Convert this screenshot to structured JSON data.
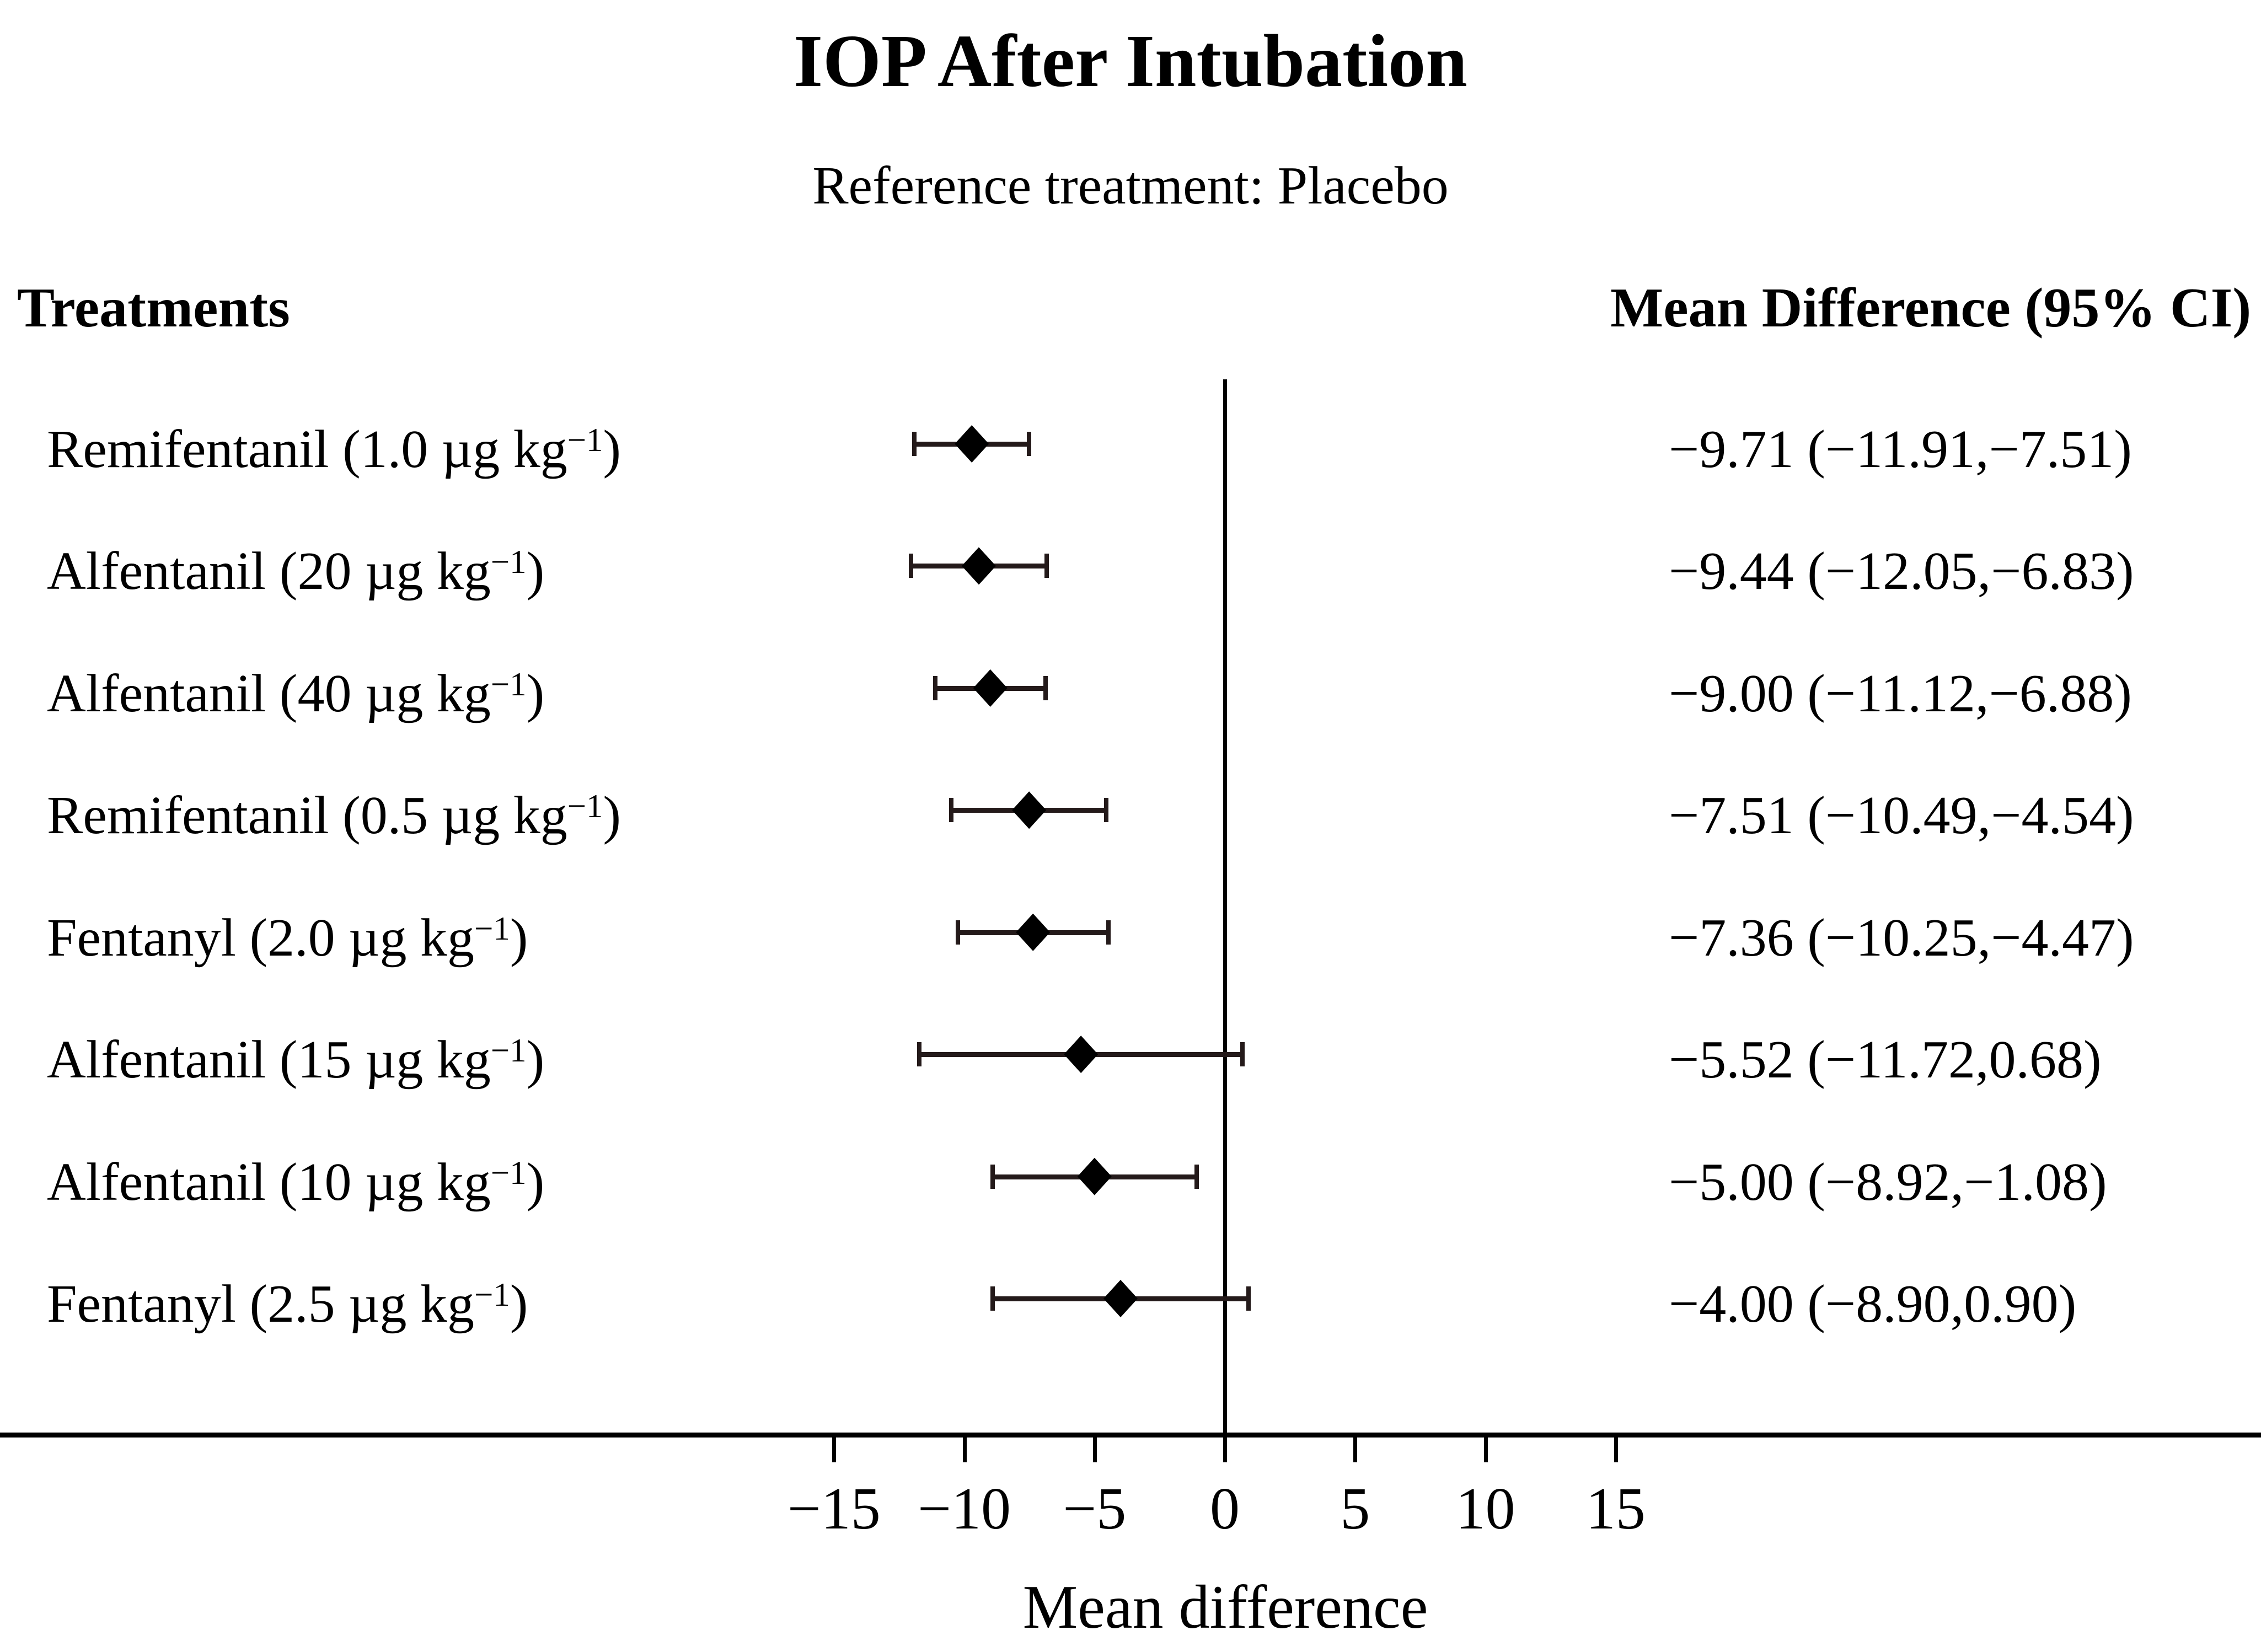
{
  "title": "IOP After Intubation",
  "subtitle": "Reference treatment: Placebo",
  "columns": {
    "left_header": "Treatments",
    "right_header": "Mean Difference (95% CI)"
  },
  "colors": {
    "foreground": "#000000",
    "background": "#ffffff",
    "marker": "#000000",
    "ci_bar": "#241a1a"
  },
  "chart_data": {
    "type": "forest",
    "title": "IOP After Intubation",
    "subtitle": "Reference treatment: Placebo",
    "xlabel": "Mean difference",
    "x_ticks": [
      -15,
      -10,
      -5,
      0,
      5,
      10,
      15
    ],
    "x_tick_labels": [
      "−15",
      "−10",
      "−5",
      "0",
      "5",
      "10",
      "15"
    ],
    "xlim": [
      -17,
      20
    ],
    "reference_line": 0,
    "legend_position": "none",
    "grid": false,
    "rows": [
      {
        "treatment": "Remifentanil (1.0 µg kg⁻¹)",
        "treatment_pre": "Remifentanil (1.0 µg kg",
        "treatment_sup": "−1",
        "treatment_post": ")",
        "mean": -9.71,
        "ci_low": -11.91,
        "ci_high": -7.51,
        "value_label": "−9.71 (−11.91,−7.51)"
      },
      {
        "treatment": "Alfentanil (20 µg kg⁻¹)",
        "treatment_pre": "Alfentanil (20 µg kg",
        "treatment_sup": "−1",
        "treatment_post": ")",
        "mean": -9.44,
        "ci_low": -12.05,
        "ci_high": -6.83,
        "value_label": "−9.44 (−12.05,−6.83)"
      },
      {
        "treatment": "Alfentanil (40 µg kg⁻¹)",
        "treatment_pre": "Alfentanil (40 µg kg",
        "treatment_sup": "−1",
        "treatment_post": ")",
        "mean": -9.0,
        "ci_low": -11.12,
        "ci_high": -6.88,
        "value_label": "−9.00 (−11.12,−6.88)"
      },
      {
        "treatment": "Remifentanil (0.5 µg kg⁻¹)",
        "treatment_pre": "Remifentanil (0.5 µg kg",
        "treatment_sup": "−1",
        "treatment_post": ")",
        "mean": -7.51,
        "ci_low": -10.49,
        "ci_high": -4.54,
        "value_label": "−7.51 (−10.49,−4.54)"
      },
      {
        "treatment": "Fentanyl (2.0 µg kg⁻¹)",
        "treatment_pre": "Fentanyl (2.0 µg kg",
        "treatment_sup": "−1",
        "treatment_post": ")",
        "mean": -7.36,
        "ci_low": -10.25,
        "ci_high": -4.47,
        "value_label": "−7.36 (−10.25,−4.47)"
      },
      {
        "treatment": "Alfentanil (15 µg kg⁻¹)",
        "treatment_pre": "Alfentanil (15 µg kg",
        "treatment_sup": "−1",
        "treatment_post": ")",
        "mean": -5.52,
        "ci_low": -11.72,
        "ci_high": 0.68,
        "value_label": "−5.52 (−11.72,0.68)"
      },
      {
        "treatment": "Alfentanil (10 µg kg⁻¹)",
        "treatment_pre": "Alfentanil (10 µg kg",
        "treatment_sup": "−1",
        "treatment_post": ")",
        "mean": -5.0,
        "ci_low": -8.92,
        "ci_high": -1.08,
        "value_label": "−5.00 (−8.92,−1.08)"
      },
      {
        "treatment": "Fentanyl (2.5 µg kg⁻¹)",
        "treatment_pre": "Fentanyl (2.5 µg kg",
        "treatment_sup": "−1",
        "treatment_post": ")",
        "mean": -4.0,
        "ci_low": -8.9,
        "ci_high": 0.9,
        "value_label": "−4.00 (−8.90,0.90)"
      }
    ]
  }
}
